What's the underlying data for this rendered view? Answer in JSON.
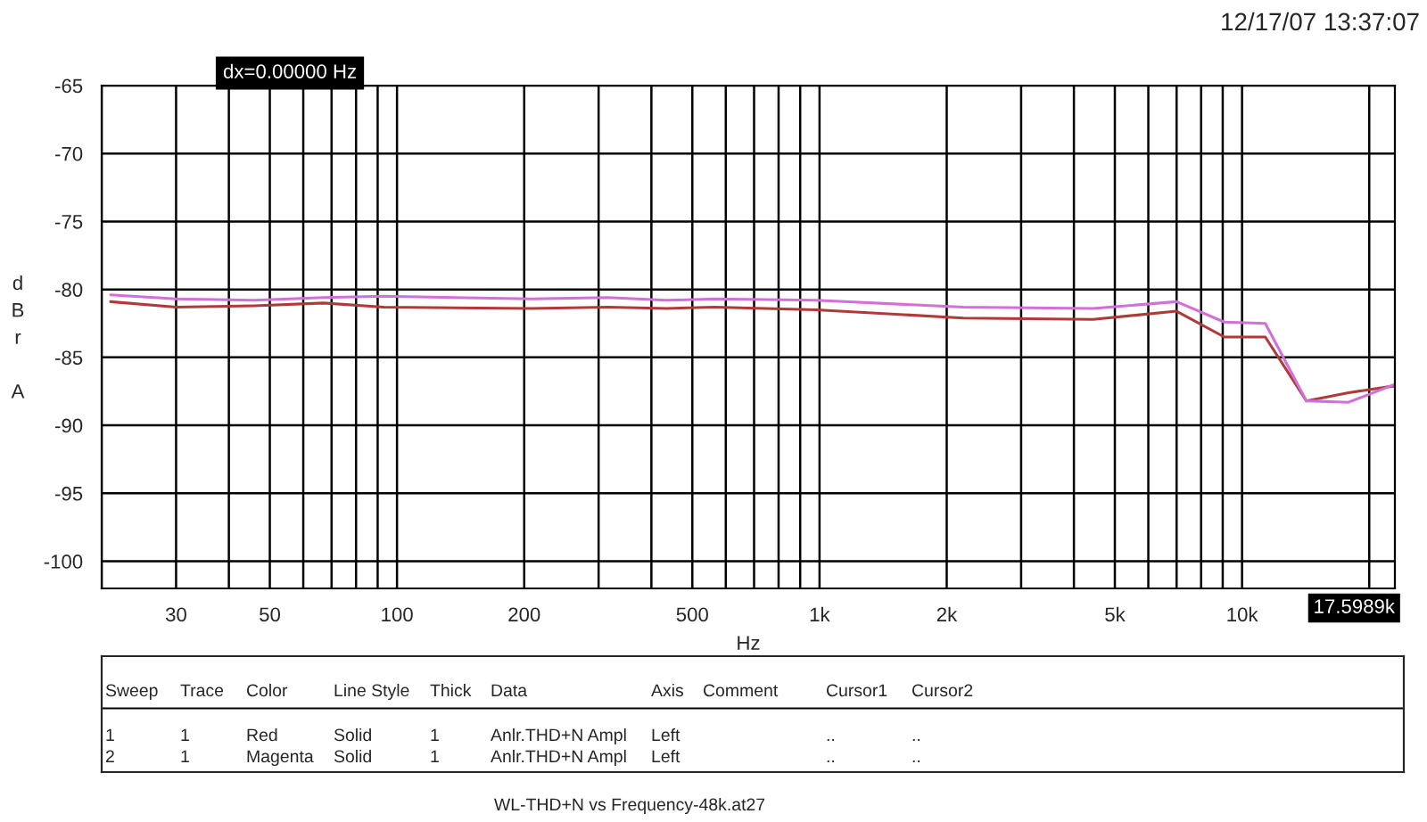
{
  "chart_data": {
    "type": "line",
    "xlabel": "Hz",
    "ylabel": "dBr A",
    "x": [
      21,
      30,
      46,
      67,
      93,
      208,
      316,
      435,
      565,
      980,
      2190,
      4440,
      7000,
      9080,
      11350,
      14200,
      17870,
      22900
    ],
    "series": [
      {
        "color": "#b03a3a",
        "values": [
          -80.9,
          -81.3,
          -81.2,
          -81.0,
          -81.3,
          -81.4,
          -81.3,
          -81.4,
          -81.3,
          -81.5,
          -82.1,
          -82.2,
          -81.6,
          -83.5,
          -83.5,
          -88.2,
          -87.6,
          -87.1
        ]
      },
      {
        "color": "#d070d8",
        "values": [
          -80.4,
          -80.7,
          -80.8,
          -80.6,
          -80.5,
          -80.7,
          -80.6,
          -80.8,
          -80.7,
          -80.8,
          -81.3,
          -81.4,
          -80.9,
          -82.4,
          -82.5,
          -88.2,
          -88.3,
          -87.0
        ]
      }
    ],
    "log": "x",
    "xlim": [
      20,
      23000
    ],
    "xticks": [
      {
        "value": 20,
        "label": null
      },
      30,
      {
        "value": 40,
        "label": null
      },
      50,
      {
        "value": 60,
        "label": null
      },
      {
        "value": 70,
        "label": null
      },
      {
        "value": 80,
        "label": null
      },
      {
        "value": 90,
        "label": null
      },
      100,
      200,
      {
        "value": 300,
        "label": null
      },
      {
        "value": 400,
        "label": null
      },
      500,
      {
        "value": 600,
        "label": null
      },
      {
        "value": 700,
        "label": null
      },
      {
        "value": 800,
        "label": null
      },
      {
        "value": 900,
        "label": null
      },
      {
        "value": 1000,
        "label": "1k"
      },
      {
        "value": 2000,
        "label": "2k"
      },
      {
        "value": 3000,
        "label": null
      },
      {
        "value": 4000,
        "label": null
      },
      {
        "value": 5000,
        "label": "5k"
      },
      {
        "value": 6000,
        "label": null
      },
      {
        "value": 7000,
        "label": null
      },
      {
        "value": 8000,
        "label": null
      },
      {
        "value": 9000,
        "label": null
      },
      {
        "value": 10000,
        "label": "10k"
      },
      {
        "value": 20000,
        "label": null
      }
    ],
    "ylim": [
      -102,
      -65
    ],
    "yticks": [
      -100,
      -95,
      -90,
      -85,
      -80,
      -75,
      -70,
      -65
    ],
    "grid": true,
    "line_style": "solid",
    "marker": "none",
    "annotations": [
      "12/17/07 13:37:07",
      "dx=0.00000 Hz",
      "17.5989k",
      "Sweep",
      "Trace",
      "Color",
      "Line Style",
      "Thick",
      "Data",
      "Axis",
      "Comment",
      "Cursor1",
      "Cursor2",
      "1",
      "1",
      "Red",
      "Solid",
      "1",
      "Anlr.THD+N Ampl",
      "Left",
      "..",
      "..",
      "2",
      "1",
      "Magenta",
      "Solid",
      "1",
      "Anlr.THD+N Ampl",
      "Left",
      "..",
      "..",
      "WL-THD+N vs Frequency-48k.at27"
    ]
  }
}
